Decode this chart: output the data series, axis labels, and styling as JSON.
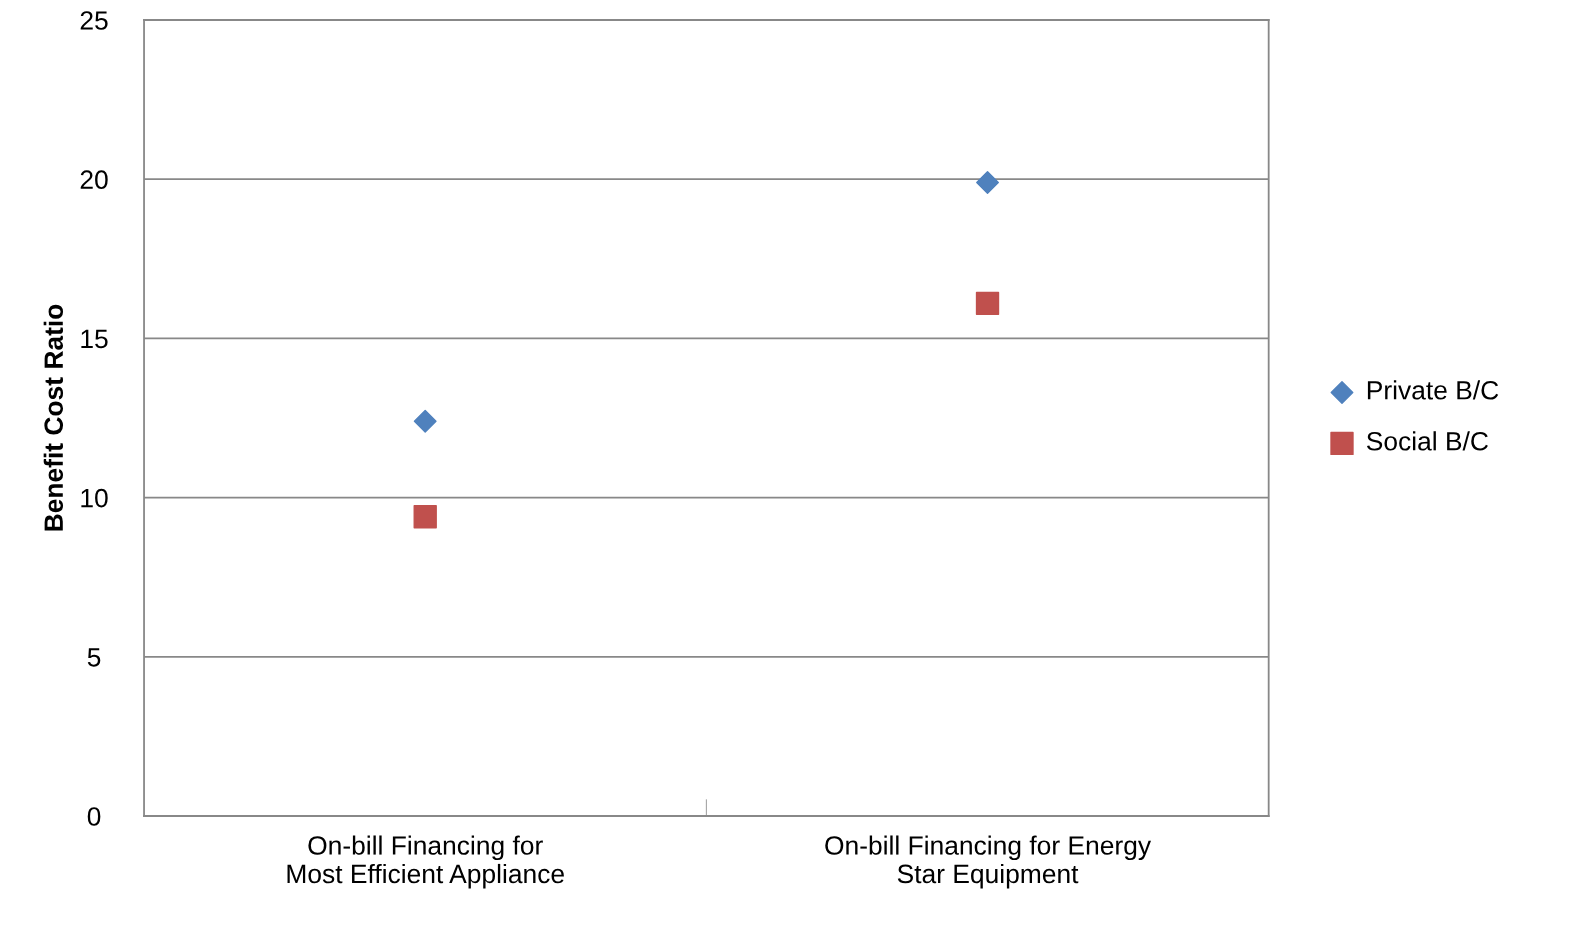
{
  "chart_data": {
    "type": "scatter",
    "ylabel": "Benefit Cost Ratio",
    "categories": [
      "On-bill Financing for\nMost Efficient Appliance",
      "On-bill Financing for Energy\nStar Equipment"
    ],
    "series": [
      {
        "name": "Private B/C",
        "color": "#4f81bd",
        "marker": "diamond",
        "values": [
          12.4,
          19.9
        ]
      },
      {
        "name": "Social B/C",
        "color": "#c0504d",
        "marker": "square",
        "values": [
          9.4,
          16.1
        ]
      }
    ],
    "ylim": [
      0,
      25
    ],
    "yticks": [
      0,
      5,
      10,
      15,
      20,
      25
    ],
    "grid": "y",
    "legend": "right"
  }
}
